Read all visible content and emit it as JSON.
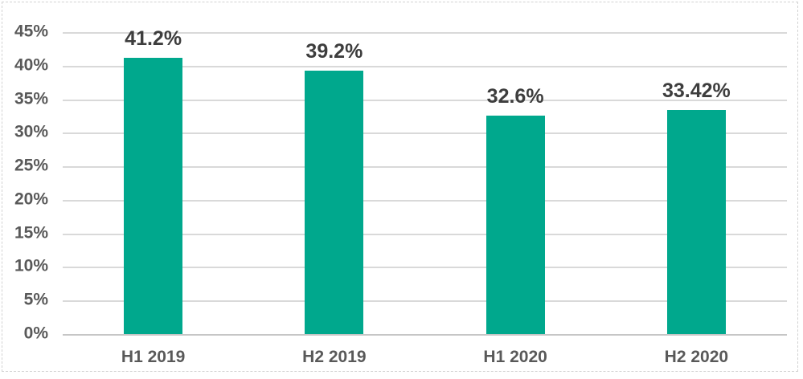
{
  "chart_data": {
    "type": "bar",
    "categories": [
      "H1 2019",
      "H2 2019",
      "H1 2020",
      "H2 2020"
    ],
    "values": [
      41.2,
      39.2,
      32.6,
      33.42
    ],
    "value_labels": [
      "41.2%",
      "39.2%",
      "32.6%",
      "33.42%"
    ],
    "title": "",
    "xlabel": "",
    "ylabel": "",
    "ylim": [
      0,
      45
    ],
    "ytick_step": 5,
    "yticks": [
      "0%",
      "5%",
      "10%",
      "15%",
      "20%",
      "25%",
      "30%",
      "35%",
      "40%",
      "45%"
    ],
    "grid": true,
    "legend": false,
    "bar_color": "#00A88D"
  },
  "colors": {
    "bar": "#00A88D",
    "gridline": "#D9D9D9",
    "axis_line": "#C6C6C6",
    "tick_label": "#595959",
    "value_label": "#3D3D3D",
    "frame_border": "#D2D2D2",
    "background": "#FFFFFF"
  }
}
